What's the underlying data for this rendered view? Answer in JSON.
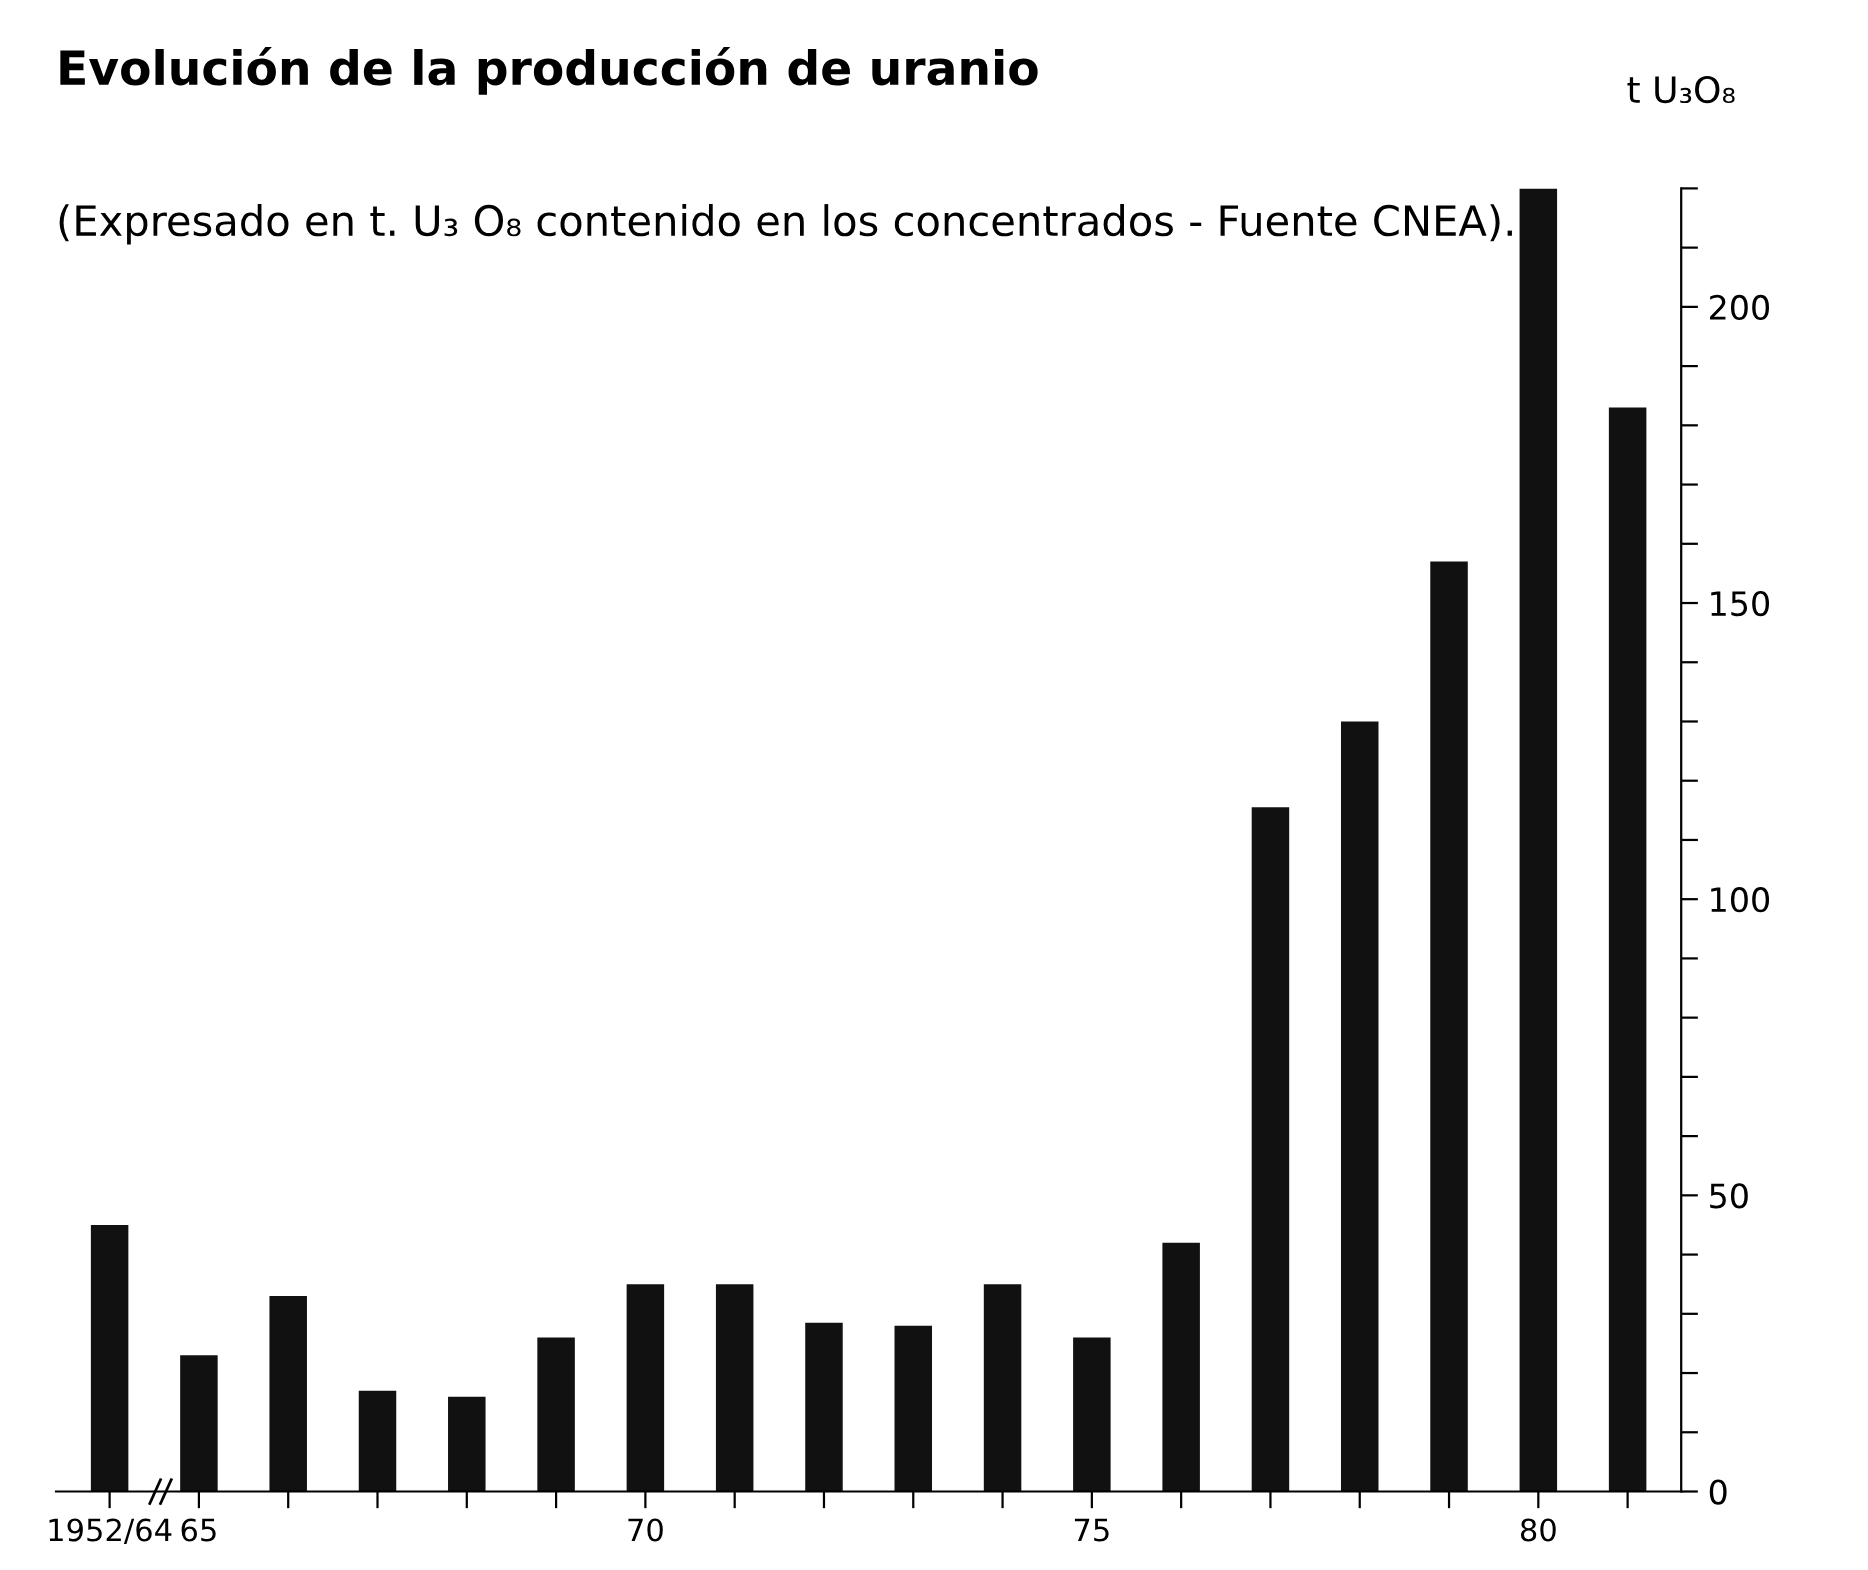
{
  "chart_data": {
    "type": "bar",
    "title": "Evolución de la producción de uranio",
    "subtitle": "(Expresado en t. U₃ O₈ contenido en los concentrados - Fuente CNEA).",
    "ylabel": "t U₃O₈",
    "categories": [
      "1952/64",
      "65",
      null,
      null,
      null,
      null,
      "70",
      null,
      null,
      null,
      null,
      "75",
      null,
      null,
      null,
      null,
      "80",
      null
    ],
    "values": [
      45,
      23,
      33,
      17,
      16,
      26,
      35,
      35,
      28.5,
      28,
      35,
      26,
      42,
      115.5,
      130,
      157,
      220,
      183
    ],
    "color": "#111111",
    "ylim": [
      0,
      220
    ],
    "yticks": [
      0,
      {
        "value": 10,
        "label": null
      },
      {
        "value": 20,
        "label": null
      },
      {
        "value": 30,
        "label": null
      },
      {
        "value": 40,
        "label": null
      },
      50,
      {
        "value": 60,
        "label": null
      },
      {
        "value": 70,
        "label": null
      },
      {
        "value": 80,
        "label": null
      },
      {
        "value": 90,
        "label": null
      },
      100,
      {
        "value": 110,
        "label": null
      },
      {
        "value": 120,
        "label": null
      },
      {
        "value": 130,
        "label": null
      },
      {
        "value": 140,
        "label": null
      },
      150,
      {
        "value": 160,
        "label": null
      },
      {
        "value": 170,
        "label": null
      },
      {
        "value": 180,
        "label": null
      },
      {
        "value": 190,
        "label": null
      },
      200,
      {
        "value": 210,
        "label": null
      },
      {
        "value": 220,
        "label": null
      }
    ],
    "grid": false,
    "legend": false
  }
}
